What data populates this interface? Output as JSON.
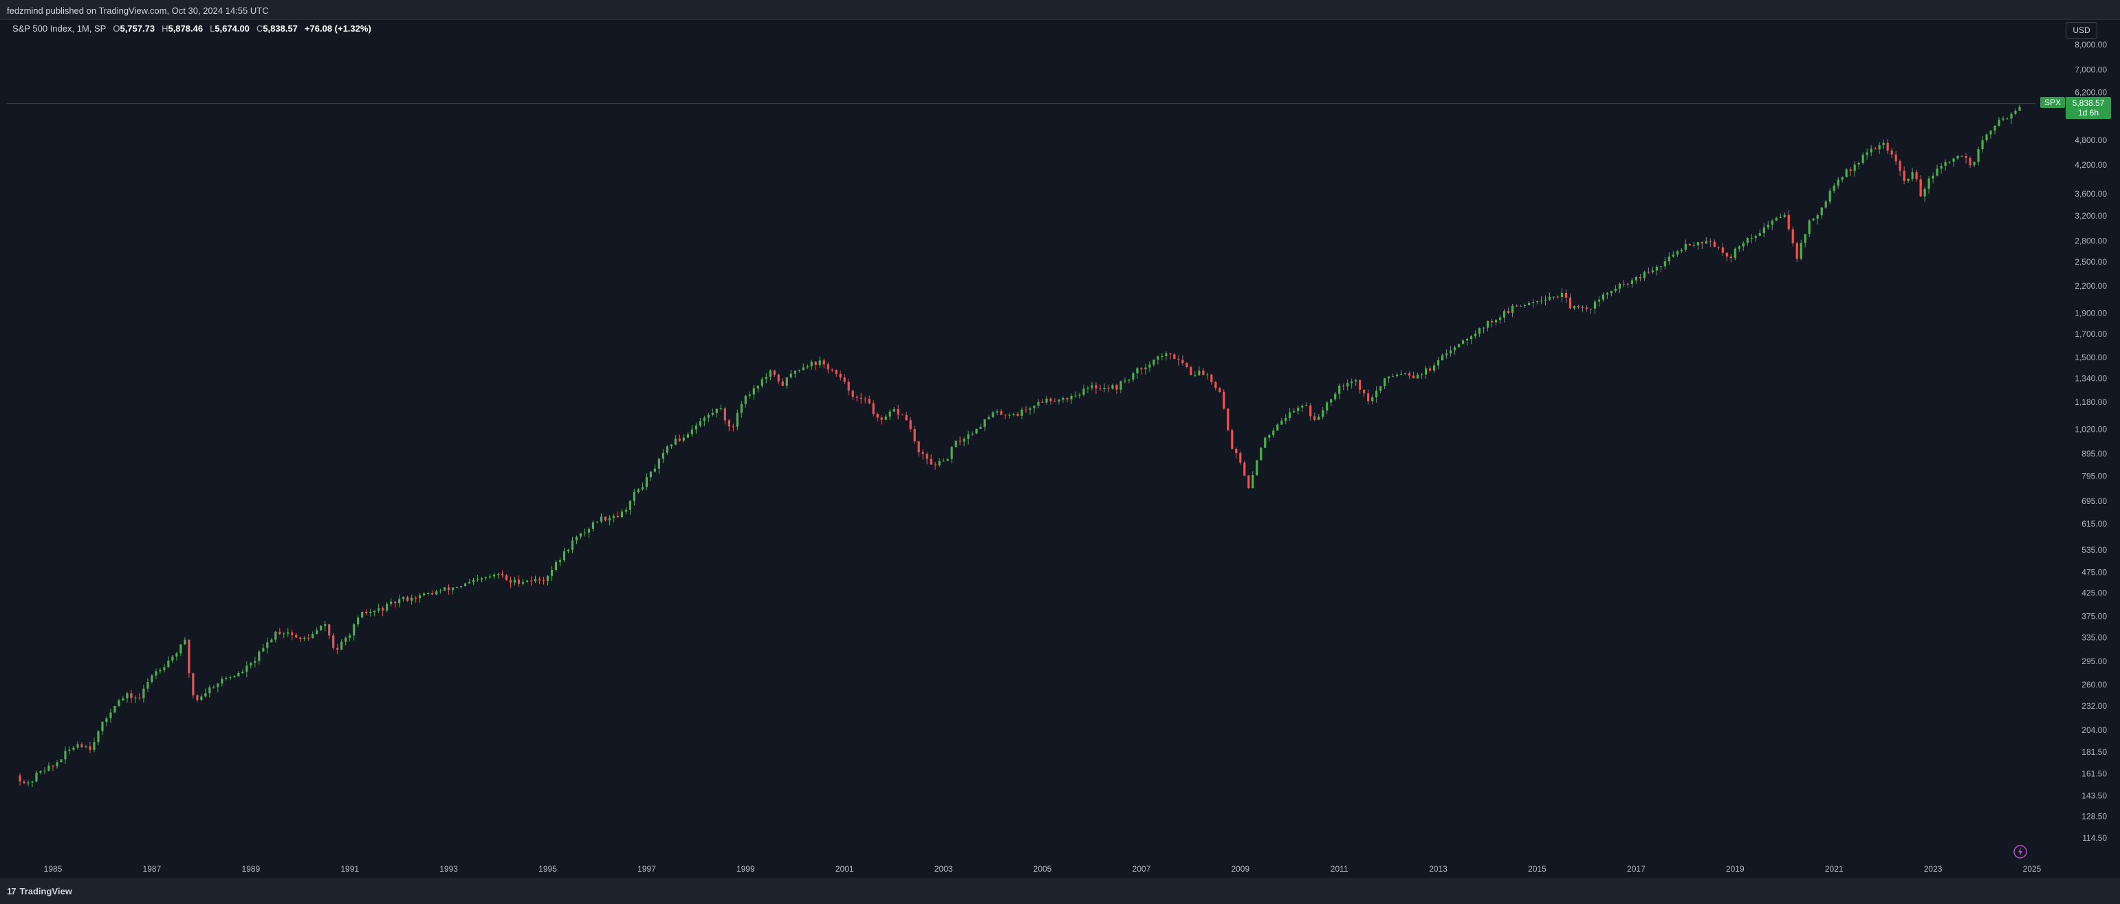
{
  "header": {
    "published": "fedzmind published on TradingView.com, Oct 30, 2024 14:55 UTC"
  },
  "legend": {
    "symbol": "S&P 500 Index, 1M, SP",
    "o_label": "O",
    "o_value": "5,757.73",
    "h_label": "H",
    "h_value": "5,878.46",
    "l_label": "L",
    "l_value": "5,674.00",
    "c_label": "C",
    "c_value": "5,838.57",
    "change": "+76.08 (+1.32%)"
  },
  "currency": "USD",
  "price_tag": {
    "symbol": "SPX",
    "price": "5,838.57",
    "countdown": "1d 6h"
  },
  "footer": {
    "brand": "TradingView"
  },
  "colors": {
    "up": "#26a69a",
    "up_body": "#4caf50",
    "down": "#ef5350",
    "background": "#131722",
    "tag": "#2e9e4a"
  },
  "chart_data": {
    "type": "candlestick",
    "title": "S&P 500 Index, 1M, SP",
    "scale": "log",
    "ylim": [
      105,
      8600
    ],
    "xlim": [
      1984.25,
      2025.75
    ],
    "x_ticks": [
      "1985",
      "1987",
      "1989",
      "1991",
      "1993",
      "1995",
      "1997",
      "1999",
      "2001",
      "2003",
      "2005",
      "2007",
      "2009",
      "2011",
      "2013",
      "2015",
      "2017",
      "2019",
      "2021",
      "2023",
      "2025"
    ],
    "y_ticks": [
      "8,000.00",
      "7,000.00",
      "6,200.00",
      "4,800.00",
      "4,200.00",
      "3,600.00",
      "3,200.00",
      "2,800.00",
      "2,500.00",
      "2,200.00",
      "1,900.00",
      "1,700.00",
      "1,500.00",
      "1,340.00",
      "1,180.00",
      "1,020.00",
      "895.00",
      "795.00",
      "695.00",
      "615.00",
      "535.00",
      "475.00",
      "425.00",
      "375.00",
      "335.00",
      "295.00",
      "260.00",
      "232.00",
      "204.00",
      "181.50",
      "161.50",
      "143.50",
      "128.50",
      "114.50"
    ],
    "last_price": 5838.57,
    "anchors": [
      [
        1984.25,
        160
      ],
      [
        1984.5,
        152
      ],
      [
        1984.75,
        165
      ],
      [
        1985.0,
        168
      ],
      [
        1985.25,
        180
      ],
      [
        1985.5,
        190
      ],
      [
        1985.75,
        186
      ],
      [
        1986.0,
        210
      ],
      [
        1986.25,
        235
      ],
      [
        1986.5,
        245
      ],
      [
        1986.75,
        242
      ],
      [
        1987.0,
        275
      ],
      [
        1987.25,
        290
      ],
      [
        1987.5,
        310
      ],
      [
        1987.67,
        328
      ],
      [
        1987.8,
        250
      ],
      [
        1987.9,
        240
      ],
      [
        1988.25,
        260
      ],
      [
        1988.5,
        270
      ],
      [
        1988.75,
        275
      ],
      [
        1989.0,
        290
      ],
      [
        1989.25,
        315
      ],
      [
        1989.5,
        345
      ],
      [
        1989.75,
        345
      ],
      [
        1990.0,
        330
      ],
      [
        1990.25,
        340
      ],
      [
        1990.5,
        360
      ],
      [
        1990.7,
        310
      ],
      [
        1990.9,
        330
      ],
      [
        1991.25,
        380
      ],
      [
        1991.5,
        385
      ],
      [
        1991.75,
        395
      ],
      [
        1992.0,
        410
      ],
      [
        1992.5,
        420
      ],
      [
        1993.0,
        435
      ],
      [
        1993.5,
        450
      ],
      [
        1994.0,
        470
      ],
      [
        1994.25,
        450
      ],
      [
        1994.5,
        455
      ],
      [
        1994.9,
        455
      ],
      [
        1995.25,
        510
      ],
      [
        1995.5,
        560
      ],
      [
        1995.75,
        590
      ],
      [
        1996.0,
        630
      ],
      [
        1996.5,
        650
      ],
      [
        1996.75,
        720
      ],
      [
        1997.0,
        780
      ],
      [
        1997.25,
        860
      ],
      [
        1997.5,
        950
      ],
      [
        1997.75,
        980
      ],
      [
        1998.0,
        1050
      ],
      [
        1998.5,
        1150
      ],
      [
        1998.7,
        1000
      ],
      [
        1998.9,
        1180
      ],
      [
        1999.25,
        1300
      ],
      [
        1999.5,
        1380
      ],
      [
        1999.75,
        1300
      ],
      [
        2000.0,
        1400
      ],
      [
        2000.25,
        1450
      ],
      [
        2000.5,
        1460
      ],
      [
        2000.75,
        1400
      ],
      [
        2001.0,
        1300
      ],
      [
        2001.25,
        1200
      ],
      [
        2001.5,
        1180
      ],
      [
        2001.7,
        1050
      ],
      [
        2002.0,
        1130
      ],
      [
        2002.25,
        1080
      ],
      [
        2002.5,
        900
      ],
      [
        2002.75,
        850
      ],
      [
        2003.0,
        850
      ],
      [
        2003.25,
        950
      ],
      [
        2003.5,
        990
      ],
      [
        2004.0,
        1110
      ],
      [
        2004.5,
        1110
      ],
      [
        2005.0,
        1190
      ],
      [
        2005.5,
        1210
      ],
      [
        2006.0,
        1280
      ],
      [
        2006.5,
        1280
      ],
      [
        2007.0,
        1420
      ],
      [
        2007.4,
        1520
      ],
      [
        2007.75,
        1500
      ],
      [
        2008.0,
        1380
      ],
      [
        2008.3,
        1380
      ],
      [
        2008.6,
        1250
      ],
      [
        2008.8,
        950
      ],
      [
        2009.0,
        850
      ],
      [
        2009.17,
        735
      ],
      [
        2009.4,
        930
      ],
      [
        2009.75,
        1060
      ],
      [
        2010.0,
        1110
      ],
      [
        2010.3,
        1180
      ],
      [
        2010.5,
        1060
      ],
      [
        2010.75,
        1180
      ],
      [
        2011.0,
        1290
      ],
      [
        2011.3,
        1340
      ],
      [
        2011.6,
        1180
      ],
      [
        2011.75,
        1250
      ],
      [
        2012.0,
        1360
      ],
      [
        2012.3,
        1390
      ],
      [
        2012.5,
        1360
      ],
      [
        2012.9,
        1420
      ],
      [
        2013.25,
        1570
      ],
      [
        2013.5,
        1650
      ],
      [
        2014.0,
        1800
      ],
      [
        2014.5,
        1950
      ],
      [
        2015.0,
        2050
      ],
      [
        2015.5,
        2100
      ],
      [
        2015.7,
        1950
      ],
      [
        2016.0,
        1940
      ],
      [
        2016.5,
        2150
      ],
      [
        2017.0,
        2280
      ],
      [
        2017.5,
        2450
      ],
      [
        2018.0,
        2750
      ],
      [
        2018.5,
        2800
      ],
      [
        2018.9,
        2500
      ],
      [
        2019.0,
        2700
      ],
      [
        2019.5,
        2950
      ],
      [
        2020.0,
        3250
      ],
      [
        2020.25,
        2580
      ],
      [
        2020.5,
        3100
      ],
      [
        2020.75,
        3300
      ],
      [
        2021.0,
        3800
      ],
      [
        2021.5,
        4300
      ],
      [
        2021.95,
        4750
      ],
      [
        2022.2,
        4400
      ],
      [
        2022.45,
        3780
      ],
      [
        2022.6,
        4100
      ],
      [
        2022.75,
        3600
      ],
      [
        2023.0,
        4000
      ],
      [
        2023.5,
        4450
      ],
      [
        2023.8,
        4200
      ],
      [
        2024.0,
        4800
      ],
      [
        2024.3,
        5250
      ],
      [
        2024.75,
        5760
      ],
      [
        2024.83,
        5839
      ]
    ]
  }
}
